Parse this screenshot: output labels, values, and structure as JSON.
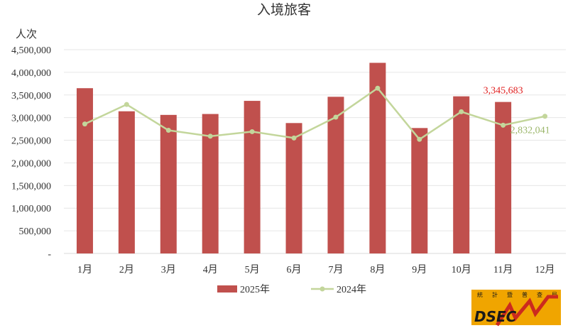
{
  "chart_data": {
    "type": "bar",
    "title": "入境旅客",
    "ylabel": "人次",
    "ylim": [
      0,
      4500000
    ],
    "yticks": [
      "-",
      "500,000",
      "1,000,000",
      "1,500,000",
      "2,000,000",
      "2,500,000",
      "3,000,000",
      "3,500,000",
      "4,000,000",
      "4,500,000"
    ],
    "grid": true,
    "legend_position": "bottom",
    "categories": [
      "1月",
      "2月",
      "3月",
      "4月",
      "5月",
      "6月",
      "7月",
      "8月",
      "9月",
      "10月",
      "11月",
      "12月"
    ],
    "series": [
      {
        "name": "2025年",
        "type": "bar",
        "color": "#c0504d",
        "values": [
          3650000,
          3140000,
          3060000,
          3080000,
          3370000,
          2880000,
          3460000,
          4210000,
          2770000,
          3470000,
          3345683,
          null
        ]
      },
      {
        "name": "2024年",
        "type": "line",
        "color": "#c3d69b",
        "values": [
          2860000,
          3290000,
          2720000,
          2590000,
          2690000,
          2550000,
          3010000,
          3650000,
          2520000,
          3130000,
          2832041,
          3030000
        ]
      }
    ],
    "annotations": [
      {
        "text": "3,345,683",
        "series": "2025年",
        "category": "11月",
        "color": "#e02020"
      },
      {
        "text": "2,832,041",
        "series": "2024年",
        "category": "11月",
        "color": "#9bb66a"
      }
    ]
  },
  "logo": {
    "text": "DSEC",
    "chars": [
      "統",
      "計",
      "暨",
      "普",
      "查",
      "局"
    ],
    "bg_color": "#f0a500"
  }
}
